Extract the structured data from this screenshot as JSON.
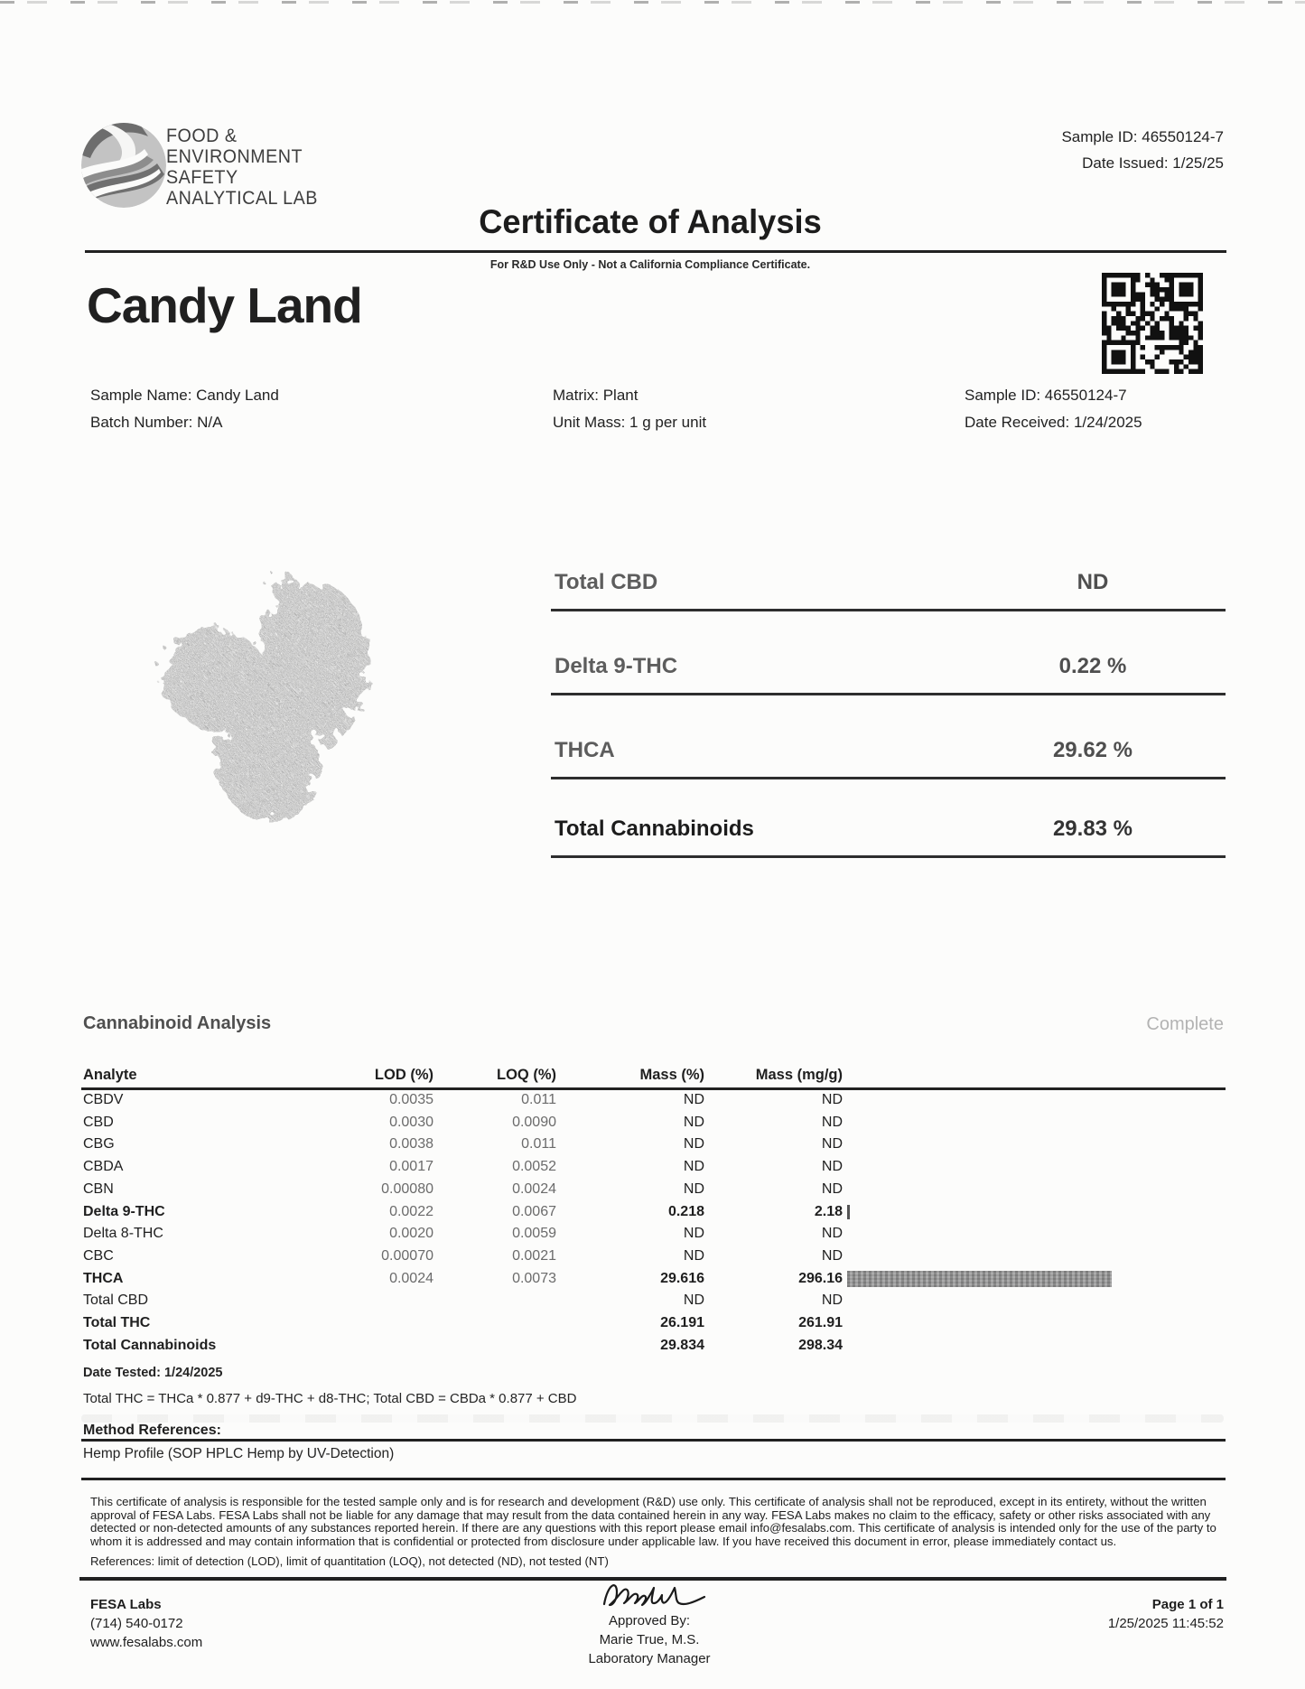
{
  "colors": {
    "ink": "#1f1f1f",
    "faded": "#6b6b6b",
    "bar_gray": "#9e9e9e"
  },
  "header": {
    "logo_lines": [
      "FOOD &",
      "ENVIRONMENT",
      "SAFETY",
      "ANALYTICAL LAB"
    ],
    "sample_id": "Sample ID: 46550124-7",
    "date_issued": "Date Issued: 1/25/25",
    "title": "Certificate of Analysis",
    "subtitle": "For R&D Use Only - Not a California Compliance Certificate."
  },
  "sample": {
    "name_heading": "Candy Land",
    "info_left": [
      "Sample Name: Candy Land",
      "Batch Number: N/A"
    ],
    "info_mid": [
      "Matrix: Plant",
      "Unit Mass: 1 g per unit"
    ],
    "info_right": [
      "Sample ID: 46550124-7",
      "Date Received: 1/24/2025"
    ]
  },
  "summary": {
    "rows": [
      {
        "label": "Total CBD",
        "value": "ND",
        "emphasis": false
      },
      {
        "label": "Delta 9-THC",
        "value": "0.22 %",
        "emphasis": false
      },
      {
        "label": "THCA",
        "value": "29.62 %",
        "emphasis": false
      },
      {
        "label": "Total Cannabinoids",
        "value": "29.83 %",
        "emphasis": true
      }
    ]
  },
  "analysis": {
    "section_title": "Cannabinoid Analysis",
    "status": "Complete",
    "columns": [
      "Analyte",
      "LOD (%)",
      "LOQ (%)",
      "Mass (%)",
      "Mass (mg/g)"
    ],
    "rows": [
      {
        "analyte": "CBDV",
        "lod": "0.0035",
        "loq": "0.011",
        "mass_pct": "ND",
        "mass_mgg": "ND",
        "bold": false,
        "bar_mgg": 0
      },
      {
        "analyte": "CBD",
        "lod": "0.0030",
        "loq": "0.0090",
        "mass_pct": "ND",
        "mass_mgg": "ND",
        "bold": false,
        "bar_mgg": 0
      },
      {
        "analyte": "CBG",
        "lod": "0.0038",
        "loq": "0.011",
        "mass_pct": "ND",
        "mass_mgg": "ND",
        "bold": false,
        "bar_mgg": 0
      },
      {
        "analyte": "CBDA",
        "lod": "0.0017",
        "loq": "0.0052",
        "mass_pct": "ND",
        "mass_mgg": "ND",
        "bold": false,
        "bar_mgg": 0
      },
      {
        "analyte": "CBN",
        "lod": "0.00080",
        "loq": "0.0024",
        "mass_pct": "ND",
        "mass_mgg": "ND",
        "bold": false,
        "bar_mgg": 0
      },
      {
        "analyte": "Delta 9-THC",
        "lod": "0.0022",
        "loq": "0.0067",
        "mass_pct": "0.218",
        "mass_mgg": "2.18",
        "bold": true,
        "bar_mgg": 2.18
      },
      {
        "analyte": "Delta 8-THC",
        "lod": "0.0020",
        "loq": "0.0059",
        "mass_pct": "ND",
        "mass_mgg": "ND",
        "bold": false,
        "bar_mgg": 0
      },
      {
        "analyte": "CBC",
        "lod": "0.00070",
        "loq": "0.0021",
        "mass_pct": "ND",
        "mass_mgg": "ND",
        "bold": false,
        "bar_mgg": 0
      },
      {
        "analyte": "THCA",
        "lod": "0.0024",
        "loq": "0.0073",
        "mass_pct": "29.616",
        "mass_mgg": "296.16",
        "bold": true,
        "bar_mgg": 296.16
      },
      {
        "analyte": "Total CBD",
        "lod": "",
        "loq": "",
        "mass_pct": "ND",
        "mass_mgg": "ND",
        "bold": false,
        "bar_mgg": 0
      },
      {
        "analyte": "Total THC",
        "lod": "",
        "loq": "",
        "mass_pct": "26.191",
        "mass_mgg": "261.91",
        "bold": true,
        "bar_mgg": 0
      },
      {
        "analyte": "Total Cannabinoids",
        "lod": "",
        "loq": "",
        "mass_pct": "29.834",
        "mass_mgg": "298.34",
        "bold": true,
        "bar_mgg": 0
      }
    ],
    "date_tested": "Date Tested: 1/24/2025",
    "formula": "Total THC = THCa * 0.877 + d9-THC + d8-THC; Total CBD = CBDa * 0.877 + CBD",
    "method_heading": "Method References:",
    "method_value": "Hemp Profile (SOP HPLC Hemp by UV-Detection)"
  },
  "legal": {
    "disclaimer": "This certificate of analysis is responsible for the tested sample only and is for research and development (R&D) use only. This certificate of analysis shall not be reproduced, except in its entirety, without the written approval of FESA Labs. FESA Labs shall not be liable for any damage that may result from the data contained herein in any way. FESA Labs makes no claim to the efficacy, safety or other risks associated with any detected or non-detected amounts of any substances reported herein. If there are any questions with this report please email info@fesalabs.com. This certificate of analysis is intended only for the use of the party to whom it is addressed and may contain information that is confidential or protected from disclosure under applicable law. If you have received this document in error, please immediately contact us.",
    "references": "References: limit of detection (LOD), limit of quantitation (LOQ), not detected (ND), not tested (NT)"
  },
  "footer": {
    "lab_name": "FESA Labs",
    "phone": "(714) 540-0172",
    "website": "www.fesalabs.com",
    "approved_by_label": "Approved By:",
    "approver": "Marie True, M.S.",
    "approver_title": "Laboratory Manager",
    "page": "Page 1 of 1",
    "timestamp": "1/25/2025 11:45:52"
  }
}
